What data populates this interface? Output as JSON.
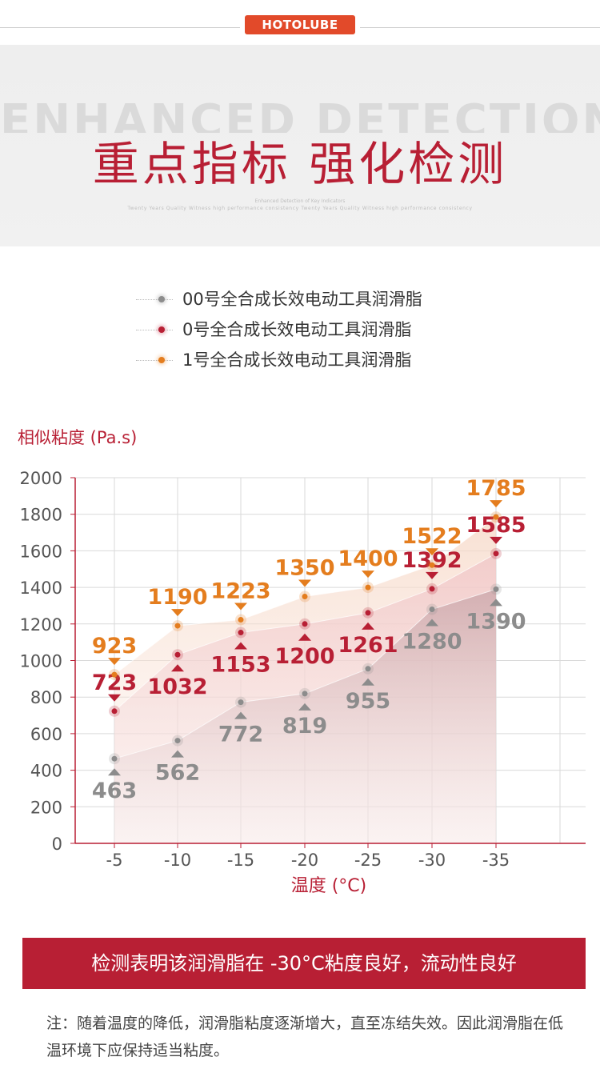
{
  "brand": {
    "logo_text": "HOTOLUBE"
  },
  "header": {
    "bg_text": "ENHANCED DETECTION",
    "title": "重点指标 强化检测",
    "subtitle_1": "Enhanced Detection of Key Indicators",
    "subtitle_2": "Twenty Years Quality Witness high performance consistency Twenty Years Quality Witness high performance consistency"
  },
  "colors": {
    "grey": "#8c8c8c",
    "red": "#b81f34",
    "orange": "#e47d1e",
    "accent": "#b81f34"
  },
  "chart_data": {
    "type": "area",
    "ylabel": "相似粘度 (Pa.s)",
    "xlabel": "温度 (°C)",
    "categories": [
      "-5",
      "-10",
      "-15",
      "-20",
      "-25",
      "-30",
      "-35"
    ],
    "yticks": [
      "2000",
      "1800",
      "1600",
      "1400",
      "1200",
      "1000",
      "800",
      "600",
      "400",
      "200",
      "0"
    ],
    "ylim": [
      0,
      2000
    ],
    "grid": true,
    "legend_position": "top",
    "series": [
      {
        "name": "00号全合成长效电动工具润滑脂",
        "color": "#8c8c8c",
        "values": [
          463,
          562,
          772,
          819,
          955,
          1280,
          1390
        ],
        "labels": [
          "463",
          "562",
          "772",
          "819",
          "955",
          "1280",
          "1390"
        ]
      },
      {
        "name": "0号全合成长效电动工具润滑脂",
        "color": "#b81f34",
        "values": [
          723,
          1032,
          1153,
          1200,
          1261,
          1392,
          1585
        ],
        "labels": [
          "723",
          "1032",
          "1153",
          "1200",
          "1261",
          "1392",
          "1585"
        ]
      },
      {
        "name": "1号全合成长效电动工具润滑脂",
        "color": "#e47d1e",
        "values": [
          923,
          1190,
          1223,
          1350,
          1400,
          1522,
          1785
        ],
        "labels": [
          "923",
          "1190",
          "1223",
          "1350",
          "1400",
          "1522",
          "1785"
        ]
      }
    ]
  },
  "conclusion": "检测表明该润滑脂在 -30°C粘度良好，流动性良好",
  "note": "注：随着温度的降低，润滑脂粘度逐渐增大，直至冻结失效。因此润滑脂在低温环境下应保持适当粘度。"
}
